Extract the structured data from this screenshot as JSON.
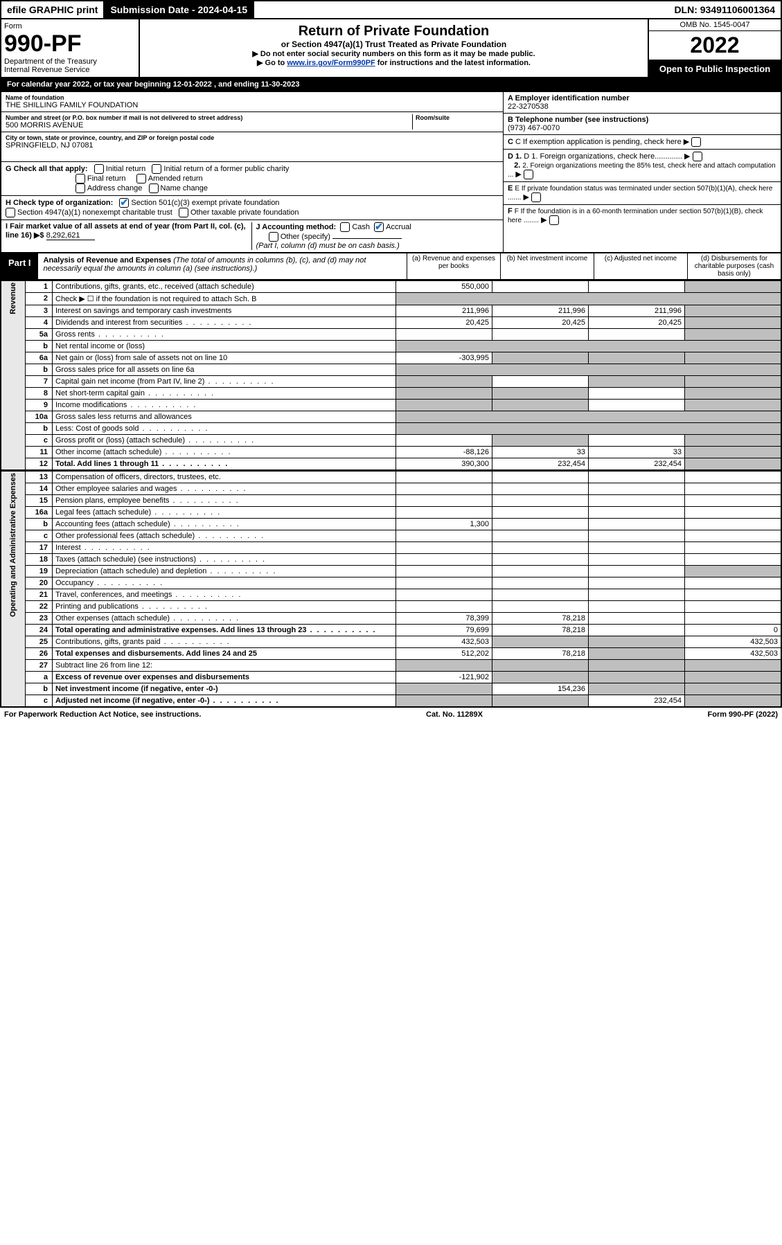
{
  "topbar": {
    "efile": "efile GRAPHIC print",
    "subdate_lbl": "Submission Date - ",
    "subdate": "2024-04-15",
    "dln_lbl": "DLN: ",
    "dln": "93491106001364"
  },
  "header": {
    "form_word": "Form",
    "num": "990-PF",
    "dept": "Department of the Treasury",
    "irs": "Internal Revenue Service",
    "title": "Return of Private Foundation",
    "subtitle": "or Section 4947(a)(1) Trust Treated as Private Foundation",
    "warn": "▶ Do not enter social security numbers on this form as it may be made public.",
    "goto": "▶ Go to ",
    "url": "www.irs.gov/Form990PF",
    "goto_tail": " for instructions and the latest information.",
    "omb_lbl": "OMB No. ",
    "omb": "1545-0047",
    "year": "2022",
    "open": "Open to Public Inspection"
  },
  "calbar": "For calendar year 2022, or tax year beginning 12-01-2022                              , and ending 11-30-2023",
  "name": {
    "lbl": "Name of foundation",
    "val": "THE SHILLING FAMILY FOUNDATION",
    "street_lbl": "Number and street (or P.O. box number if mail is not delivered to street address)",
    "street": "500 MORRIS AVENUE",
    "room_lbl": "Room/suite",
    "city_lbl": "City or town, state or province, country, and ZIP or foreign postal code",
    "city": "SPRINGFIELD, NJ  07081"
  },
  "right": {
    "a_lbl": "A Employer identification number",
    "a": "22-3270538",
    "b_lbl": "B Telephone number (see instructions)",
    "b": "(973) 467-0070",
    "c": "C  If exemption application is pending, check here",
    "d1": "D 1. Foreign organizations, check here.............",
    "d2": "2. Foreign organizations meeting the 85% test, check here and attach computation ...",
    "e": "E  If private foundation status was terminated under section 507(b)(1)(A), check here .......",
    "f": "F  If the foundation is in a 60-month termination under section 507(b)(1)(B), check here ........"
  },
  "checks": {
    "g_lbl": "G Check all that apply:",
    "g": {
      "initial": "Initial return",
      "initial_pub": "Initial return of a former public charity",
      "final": "Final return",
      "amended": "Amended return",
      "addr": "Address change",
      "name": "Name change"
    },
    "h_lbl": "H Check type of organization:",
    "h": {
      "501c3": "Section 501(c)(3) exempt private foundation",
      "4947": "Section 4947(a)(1) nonexempt charitable trust",
      "other": "Other taxable private foundation"
    },
    "i_lbl": "I Fair market value of all assets at end of year (from Part II, col. (c), line 16) ▶$",
    "i_val": "8,292,621",
    "j_lbl": "J Accounting method:",
    "j": {
      "cash": "Cash",
      "accrual": "Accrual",
      "other": "Other (specify)"
    },
    "j_note": "(Part I, column (d) must be on cash basis.)"
  },
  "part1": {
    "tag": "Part I",
    "title": "Analysis of Revenue and Expenses",
    "title_tail": " (The total of amounts in columns (b), (c), and (d) may not necessarily equal the amounts in column (a) (see instructions).)",
    "cols": {
      "a": "(a)   Revenue and expenses per books",
      "b": "(b)   Net investment income",
      "c": "(c)   Adjusted net income",
      "d": "(d)   Disbursements for charitable purposes (cash basis only)"
    }
  },
  "sidelabels": {
    "rev": "Revenue",
    "ope": "Operating and Administrative Expenses"
  },
  "rows": [
    {
      "n": "1",
      "t": "Contributions, gifts, grants, etc., received (attach schedule)",
      "a": "550,000",
      "b": "",
      "c": "",
      "d": "",
      "bg": false,
      "cg": false,
      "dg": true
    },
    {
      "n": "2",
      "t": "Check ▶ ☐ if the foundation is not required to attach Sch. B",
      "nocells": true
    },
    {
      "n": "3",
      "t": "Interest on savings and temporary cash investments",
      "a": "211,996",
      "b": "211,996",
      "c": "211,996",
      "d": "",
      "dg": true
    },
    {
      "n": "4",
      "t": "Dividends and interest from securities",
      "a": "20,425",
      "b": "20,425",
      "c": "20,425",
      "d": "",
      "dg": true,
      "dots": true
    },
    {
      "n": "5a",
      "t": "Gross rents",
      "dots": true,
      "dg": true
    },
    {
      "n": "b",
      "t": "Net rental income or (loss)",
      "abonly": true
    },
    {
      "n": "6a",
      "t": "Net gain or (loss) from sale of assets not on line 10",
      "a": "-303,995",
      "bg": true,
      "cg": true,
      "dg": true
    },
    {
      "n": "b",
      "t": "Gross sales price for all assets on line 6a",
      "abonly": true
    },
    {
      "n": "7",
      "t": "Capital gain net income (from Part IV, line 2)",
      "ag": true,
      "cg": true,
      "dg": true,
      "dots": true
    },
    {
      "n": "8",
      "t": "Net short-term capital gain",
      "ag": true,
      "bg": true,
      "dg": true,
      "dots": true
    },
    {
      "n": "9",
      "t": "Income modifications",
      "ag": true,
      "bg": true,
      "dg": true,
      "dots": true
    },
    {
      "n": "10a",
      "t": "Gross sales less returns and allowances",
      "abonly": true
    },
    {
      "n": "b",
      "t": "Less: Cost of goods sold",
      "abonly": true,
      "dots": true
    },
    {
      "n": "c",
      "t": "Gross profit or (loss) (attach schedule)",
      "bg": true,
      "dg": true,
      "dots": true
    },
    {
      "n": "11",
      "t": "Other income (attach schedule)",
      "a": "-88,126",
      "b": "33",
      "c": "33",
      "dg": true,
      "dots": true
    },
    {
      "n": "12",
      "t": "Total. Add lines 1 through 11",
      "a": "390,300",
      "b": "232,454",
      "c": "232,454",
      "dg": true,
      "bold": true,
      "dots": true
    }
  ],
  "exprows": [
    {
      "n": "13",
      "t": "Compensation of officers, directors, trustees, etc."
    },
    {
      "n": "14",
      "t": "Other employee salaries and wages",
      "dots": true
    },
    {
      "n": "15",
      "t": "Pension plans, employee benefits",
      "dots": true
    },
    {
      "n": "16a",
      "t": "Legal fees (attach schedule)",
      "dots": true
    },
    {
      "n": "b",
      "t": "Accounting fees (attach schedule)",
      "a": "1,300",
      "dots": true
    },
    {
      "n": "c",
      "t": "Other professional fees (attach schedule)",
      "dots": true
    },
    {
      "n": "17",
      "t": "Interest",
      "dots": true
    },
    {
      "n": "18",
      "t": "Taxes (attach schedule) (see instructions)",
      "dots": true
    },
    {
      "n": "19",
      "t": "Depreciation (attach schedule) and depletion",
      "dg": true,
      "dots": true
    },
    {
      "n": "20",
      "t": "Occupancy",
      "dots": true
    },
    {
      "n": "21",
      "t": "Travel, conferences, and meetings",
      "dots": true
    },
    {
      "n": "22",
      "t": "Printing and publications",
      "dots": true
    },
    {
      "n": "23",
      "t": "Other expenses (attach schedule)",
      "a": "78,399",
      "b": "78,218",
      "icon": true,
      "dots": true
    },
    {
      "n": "24",
      "t": "Total operating and administrative expenses. Add lines 13 through 23",
      "a": "79,699",
      "b": "78,218",
      "d": "0",
      "bold": true,
      "dots": true
    },
    {
      "n": "25",
      "t": "Contributions, gifts, grants paid",
      "a": "432,503",
      "bg": true,
      "cg": true,
      "d": "432,503",
      "dots": true
    },
    {
      "n": "26",
      "t": "Total expenses and disbursements. Add lines 24 and 25",
      "a": "512,202",
      "b": "78,218",
      "d": "432,503",
      "bold": true,
      "cg": true
    },
    {
      "n": "27",
      "t": "Subtract line 26 from line 12:",
      "abonly_full": true
    },
    {
      "n": "a",
      "t": "Excess of revenue over expenses and disbursements",
      "a": "-121,902",
      "bg": true,
      "cg": true,
      "dg": true,
      "bold": true
    },
    {
      "n": "b",
      "t": "Net investment income (if negative, enter -0-)",
      "ag": true,
      "b": "154,236",
      "cg": true,
      "dg": true,
      "bold": true
    },
    {
      "n": "c",
      "t": "Adjusted net income (if negative, enter -0-)",
      "ag": true,
      "bg": true,
      "c": "232,454",
      "dg": true,
      "bold": true,
      "dots": true
    }
  ],
  "footer": {
    "left": "For Paperwork Reduction Act Notice, see instructions.",
    "mid": "Cat. No. 11289X",
    "right": "Form 990-PF (2022)"
  },
  "colors": {
    "link": "#0037a9",
    "grey": "#bfbfbf",
    "check": "#1a75d1"
  }
}
